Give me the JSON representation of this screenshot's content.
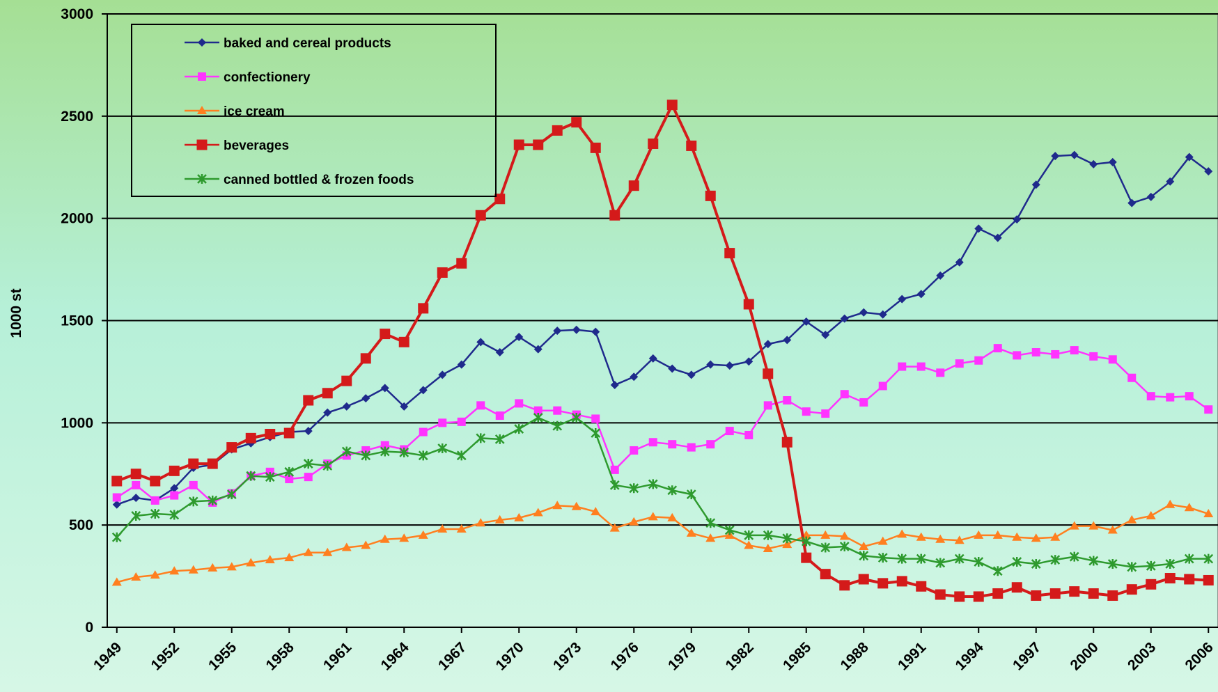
{
  "chart_data": {
    "type": "line",
    "y_label": "1000 st",
    "x": [
      1949,
      1950,
      1951,
      1952,
      1953,
      1954,
      1955,
      1956,
      1957,
      1958,
      1959,
      1960,
      1961,
      1962,
      1963,
      1964,
      1965,
      1966,
      1967,
      1968,
      1969,
      1970,
      1971,
      1972,
      1973,
      1974,
      1975,
      1976,
      1977,
      1978,
      1979,
      1980,
      1981,
      1982,
      1983,
      1984,
      1985,
      1986,
      1987,
      1988,
      1989,
      1990,
      1991,
      1992,
      1993,
      1994,
      1995,
      1996,
      1997,
      1998,
      1999,
      2000,
      2001,
      2002,
      2003,
      2004,
      2005,
      2006
    ],
    "xlim": [
      1948.5,
      2006.5
    ],
    "xticks": [
      1949,
      1952,
      1955,
      1958,
      1961,
      1964,
      1967,
      1970,
      1973,
      1976,
      1979,
      1982,
      1985,
      1988,
      1991,
      1994,
      1997,
      2000,
      2003,
      2006
    ],
    "ylim": [
      0,
      3000
    ],
    "yticks": [
      0,
      500,
      1000,
      1500,
      2000,
      2500,
      3000
    ],
    "grid": true,
    "legend": "upper left",
    "series": [
      {
        "name": "baked and cereal products",
        "color": "#1f2a8c",
        "marker": "diamond",
        "values": [
          600,
          633,
          620,
          680,
          780,
          795,
          870,
          900,
          930,
          955,
          960,
          1050,
          1080,
          1120,
          1170,
          1080,
          1160,
          1235,
          1285,
          1395,
          1345,
          1420,
          1360,
          1450,
          1455,
          1445,
          1185,
          1225,
          1315,
          1265,
          1235,
          1285,
          1280,
          1300,
          1385,
          1405,
          1495,
          1430,
          1510,
          1540,
          1530,
          1605,
          1630,
          1720,
          1785,
          1950,
          1905,
          1995,
          2165,
          2305,
          2310,
          2265,
          2275,
          2075,
          2105,
          2180,
          2300,
          2230
        ]
      },
      {
        "name": "confectionery",
        "color": "#ff33ff",
        "marker": "square",
        "values": [
          635,
          695,
          620,
          645,
          695,
          610,
          655,
          740,
          760,
          725,
          735,
          800,
          840,
          865,
          890,
          870,
          955,
          1000,
          1005,
          1085,
          1035,
          1095,
          1060,
          1060,
          1040,
          1020,
          770,
          865,
          905,
          895,
          880,
          895,
          960,
          940,
          1085,
          1110,
          1055,
          1045,
          1140,
          1100,
          1180,
          1275,
          1275,
          1245,
          1290,
          1305,
          1365,
          1330,
          1345,
          1335,
          1355,
          1325,
          1310,
          1220,
          1130,
          1125,
          1130,
          1065
        ]
      },
      {
        "name": "ice cream",
        "color": "#ff7f1f",
        "marker": "triangle",
        "values": [
          220,
          245,
          255,
          275,
          280,
          290,
          295,
          315,
          330,
          340,
          365,
          365,
          390,
          400,
          430,
          435,
          450,
          480,
          480,
          510,
          525,
          535,
          560,
          595,
          590,
          565,
          485,
          515,
          540,
          535,
          460,
          435,
          450,
          400,
          385,
          405,
          450,
          450,
          445,
          395,
          420,
          455,
          440,
          430,
          425,
          450,
          450,
          440,
          435,
          440,
          495,
          495,
          475,
          525,
          545,
          600,
          585,
          555
        ]
      },
      {
        "name": "beverages",
        "color": "#d41a1a",
        "marker": "bigsquare",
        "values": [
          715,
          750,
          715,
          765,
          800,
          800,
          880,
          925,
          945,
          950,
          1110,
          1145,
          1205,
          1315,
          1435,
          1395,
          1560,
          1735,
          1780,
          2015,
          2095,
          2360,
          2360,
          2430,
          2470,
          2345,
          2015,
          2160,
          2365,
          2555,
          2355,
          2110,
          1830,
          1580,
          1240,
          905,
          340,
          260,
          205,
          235,
          215,
          225,
          200,
          160,
          150,
          150,
          165,
          195,
          155,
          165,
          175,
          165,
          155,
          185,
          210,
          240,
          235,
          230
        ]
      },
      {
        "name": "canned bottled & frozen foods",
        "color": "#2e9a2e",
        "marker": "star",
        "values": [
          440,
          545,
          555,
          550,
          615,
          620,
          650,
          740,
          735,
          760,
          800,
          790,
          860,
          840,
          860,
          855,
          840,
          875,
          840,
          925,
          920,
          970,
          1025,
          985,
          1025,
          950,
          695,
          680,
          700,
          670,
          650,
          510,
          475,
          450,
          450,
          435,
          420,
          390,
          395,
          350,
          340,
          335,
          335,
          315,
          335,
          320,
          275,
          320,
          310,
          330,
          345,
          325,
          310,
          295,
          300,
          310,
          335,
          335
        ]
      }
    ]
  }
}
